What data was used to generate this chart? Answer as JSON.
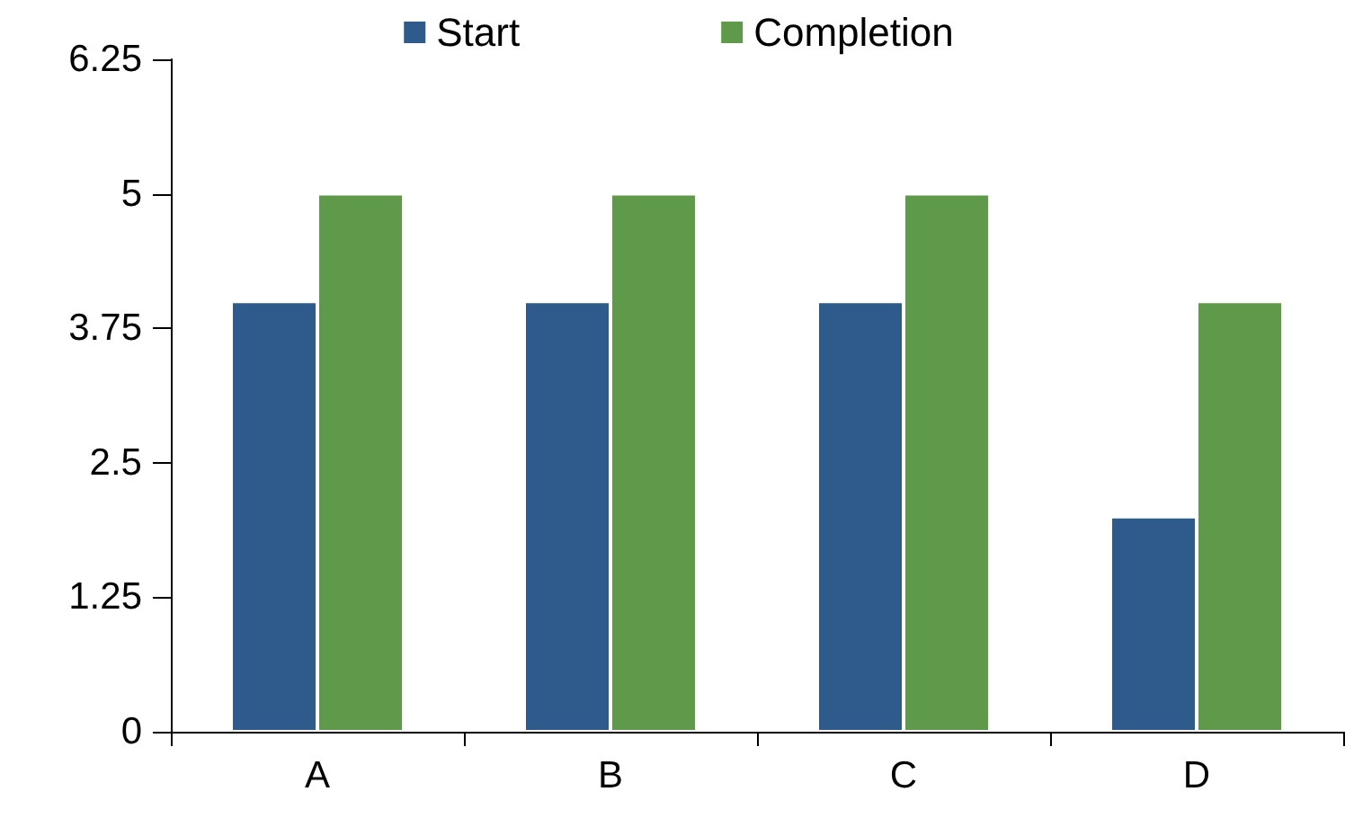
{
  "chart_data": {
    "type": "bar",
    "categories": [
      "A",
      "B",
      "C",
      "D"
    ],
    "series": [
      {
        "name": "Start",
        "color": "#2e5a8c",
        "values": [
          4,
          4,
          4,
          2
        ]
      },
      {
        "name": "Completion",
        "color": "#5e9a4a",
        "values": [
          5,
          5,
          5,
          4
        ]
      }
    ],
    "ylim": [
      0,
      6.25
    ],
    "yticks": [
      0,
      1.25,
      2.5,
      3.75,
      5,
      6.25
    ],
    "grid": false,
    "legend": "top"
  }
}
